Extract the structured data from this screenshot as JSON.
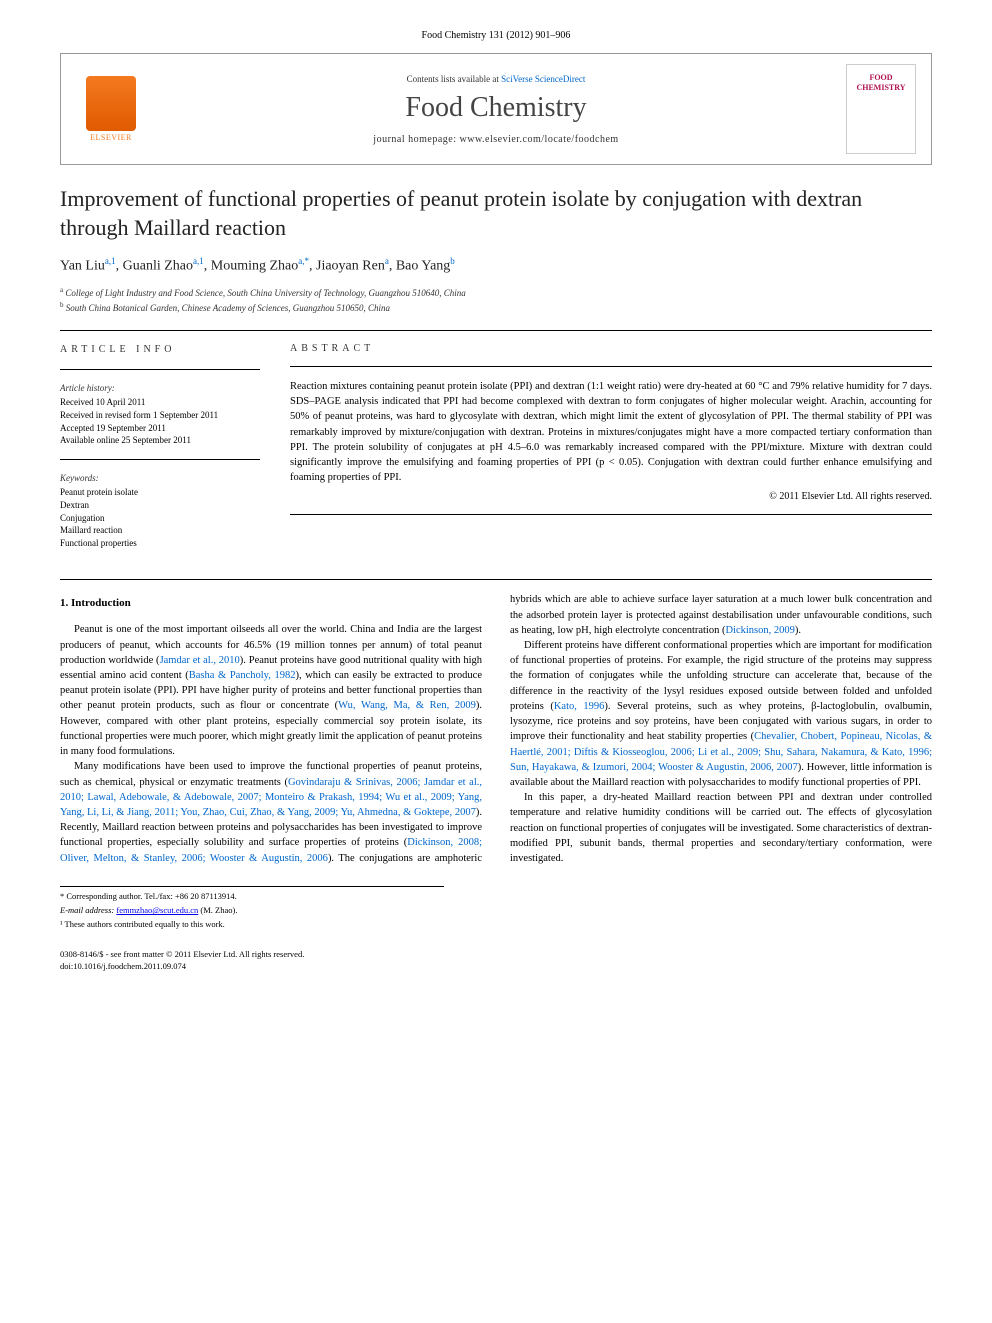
{
  "journal_ref": "Food Chemistry 131 (2012) 901–906",
  "header": {
    "contents_prefix": "Contents lists available at ",
    "contents_link": "SciVerse ScienceDirect",
    "journal_name": "Food Chemistry",
    "homepage_prefix": "journal homepage: ",
    "homepage_url": "www.elsevier.com/locate/foodchem",
    "publisher": "ELSEVIER",
    "cover_text": "FOOD CHEMISTRY"
  },
  "title": "Improvement of functional properties of peanut protein isolate by conjugation with dextran through Maillard reaction",
  "authors_html": "Yan Liu",
  "author_list": [
    {
      "name": "Yan Liu",
      "aff": "a,1"
    },
    {
      "name": "Guanli Zhao",
      "aff": "a,1"
    },
    {
      "name": "Mouming Zhao",
      "aff": "a,*"
    },
    {
      "name": "Jiaoyan Ren",
      "aff": "a"
    },
    {
      "name": "Bao Yang",
      "aff": "b"
    }
  ],
  "affiliations": [
    {
      "sup": "a",
      "text": "College of Light Industry and Food Science, South China University of Technology, Guangzhou 510640, China"
    },
    {
      "sup": "b",
      "text": "South China Botanical Garden, Chinese Academy of Sciences, Guangzhou 510650, China"
    }
  ],
  "info": {
    "heading": "ARTICLE INFO",
    "history_label": "Article history:",
    "history": [
      "Received 10 April 2011",
      "Received in revised form 1 September 2011",
      "Accepted 19 September 2011",
      "Available online 25 September 2011"
    ],
    "keywords_label": "Keywords:",
    "keywords": [
      "Peanut protein isolate",
      "Dextran",
      "Conjugation",
      "Maillard reaction",
      "Functional properties"
    ]
  },
  "abstract": {
    "heading": "ABSTRACT",
    "text": "Reaction mixtures containing peanut protein isolate (PPI) and dextran (1:1 weight ratio) were dry-heated at 60 °C and 79% relative humidity for 7 days. SDS–PAGE analysis indicated that PPI had become complexed with dextran to form conjugates of higher molecular weight. Arachin, accounting for 50% of peanut proteins, was hard to glycosylate with dextran, which might limit the extent of glycosylation of PPI. The thermal stability of PPI was remarkably improved by mixture/conjugation with dextran. Proteins in mixtures/conjugates might have a more compacted tertiary conformation than PPI. The protein solubility of conjugates at pH 4.5–6.0 was remarkably increased compared with the PPI/mixture. Mixture with dextran could significantly improve the emulsifying and foaming properties of PPI (p < 0.05). Conjugation with dextran could further enhance emulsifying and foaming properties of PPI.",
    "copyright": "© 2011 Elsevier Ltd. All rights reserved."
  },
  "intro": {
    "heading": "1. Introduction",
    "p1a": "Peanut is one of the most important oilseeds all over the world. China and India are the largest producers of peanut, which accounts for 46.5% (19 million tonnes per annum) of total peanut production worldwide (",
    "p1r1": "Jamdar et al., 2010",
    "p1b": "). Peanut proteins have good nutritional quality with high essential amino acid content (",
    "p1r2": "Basha & Pancholy, 1982",
    "p1c": "), which can easily be extracted to produce peanut protein isolate (PPI). PPI have higher purity of proteins and better functional properties than other peanut protein products, such as flour or concentrate (",
    "p1r3": "Wu, Wang, Ma, & Ren, 2009",
    "p1d": "). However, compared with other plant proteins, especially commercial soy protein isolate, its functional properties were much poorer, which might greatly limit the application of peanut proteins in many food formulations.",
    "p2a": "Many modifications have been used to improve the functional properties of peanut proteins, such as chemical, physical or enzymatic treatments (",
    "p2r1": "Govindaraju & Srinivas, 2006; Jamdar et al., 2010; Lawal, Adebowale, & Adebowale, 2007; Monteiro & Prakash, 1994; Wu et al., 2009; Yang, Yang, Li, Li, & Jiang, 2011; You, Zhao, Cui, Zhao, & Yang, 2009; Yu, Ahmedna, & Goktepe, 2007",
    "p2b": "). Recently, Maillard reaction between proteins and polysaccharides has been investigated to improve functional properties, especially solubility and surface properties of proteins (",
    "p2r2": "Dickinson, 2008; Oliver, Melton, ",
    "p2r2b": "& Stanley, 2006; Wooster & Augustin, 2006",
    "p2c": "). The conjugations are amphoteric hybrids which are able to achieve surface layer saturation at a much lower bulk concentration and the adsorbed protein layer is protected against destabilisation under unfavourable conditions, such as heating, low pH, high electrolyte concentration (",
    "p2r3": "Dickinson, 2009",
    "p2d": ").",
    "p3a": "Different proteins have different conformational properties which are important for modification of functional properties of proteins. For example, the rigid structure of the proteins may suppress the formation of conjugates while the unfolding structure can accelerate that, because of the difference in the reactivity of the lysyl residues exposed outside between folded and unfolded proteins (",
    "p3r1": "Kato, 1996",
    "p3b": "). Several proteins, such as whey proteins, β-lactoglobulin, ovalbumin, lysozyme, rice proteins and soy proteins, have been conjugated with various sugars, in order to improve their functionality and heat stability properties (",
    "p3r2": "Chevalier, Chobert, Popineau, Nicolas, & Haertlé, 2001; Diftis & Kiosseoglou, 2006; Li et al., 2009; Shu, Sahara, Nakamura, & Kato, 1996; Sun, Hayakawa, & Izumori, 2004; Wooster & Augustin, 2006, 2007",
    "p3c": "). However, little information is available about the Maillard reaction with polysaccharides to modify functional properties of PPI.",
    "p4": "In this paper, a dry-heated Maillard reaction between PPI and dextran under controlled temperature and relative humidity conditions will be carried out. The effects of glycosylation reaction on functional properties of conjugates will be investigated. Some characteristics of dextran-modified PPI, subunit bands, thermal properties and secondary/tertiary conformation, were investigated."
  },
  "footnotes": {
    "corr_label": "* Corresponding author. Tel./fax: +86 20 87113914.",
    "email_label": "E-mail address:",
    "email": "femmzhao@scut.edu.cn",
    "email_suffix": "(M. Zhao).",
    "contrib": "¹ These authors contributed equally to this work."
  },
  "footer": {
    "line1": "0308-8146/$ - see front matter © 2011 Elsevier Ltd. All rights reserved.",
    "line2": "doi:10.1016/j.foodchem.2011.09.074"
  }
}
